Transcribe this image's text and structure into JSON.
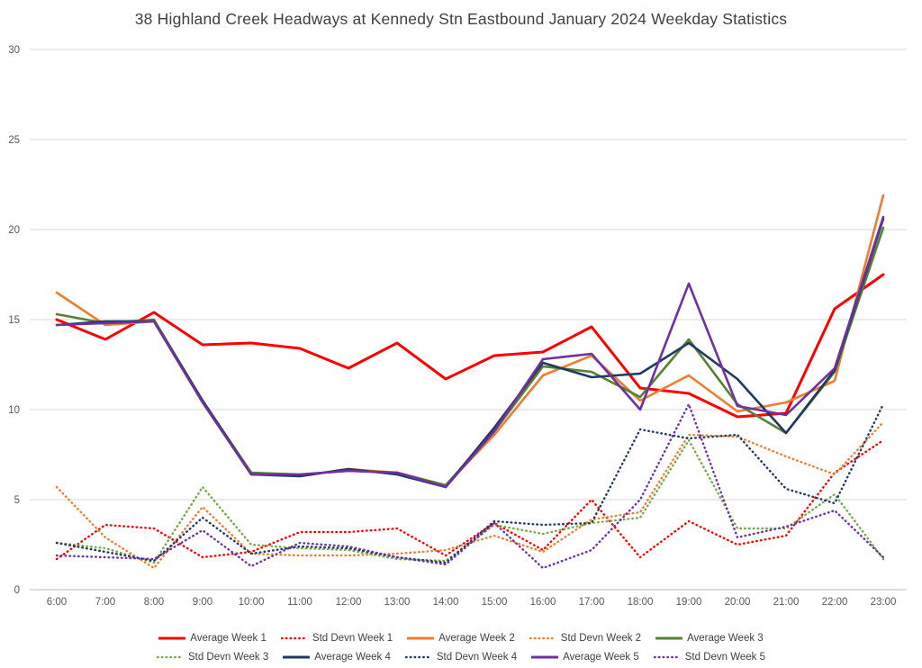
{
  "title": "38 Highland Creek Headways at Kennedy Stn Eastbound January 2024 Weekday Statistics",
  "chart_data": {
    "type": "line",
    "title": "38 Highland Creek Headways at Kennedy Stn Eastbound January 2024 Weekday Statistics",
    "xlabel": "",
    "ylabel": "",
    "ylim": [
      0,
      30
    ],
    "yticks": [
      0,
      5,
      10,
      15,
      20,
      25,
      30
    ],
    "grid": true,
    "legend_position": "bottom",
    "x": [
      "6:00",
      "7:00",
      "8:00",
      "9:00",
      "10:00",
      "11:00",
      "12:00",
      "13:00",
      "14:00",
      "15:00",
      "16:00",
      "17:00",
      "18:00",
      "19:00",
      "20:00",
      "21:00",
      "22:00",
      "23:00"
    ],
    "series": [
      {
        "name": "Average Week 1",
        "color": "#FF0000",
        "style": "solid",
        "values": [
          15.0,
          13.9,
          15.4,
          13.6,
          13.7,
          13.4,
          12.3,
          13.7,
          11.7,
          13.0,
          13.2,
          14.6,
          11.2,
          10.9,
          9.6,
          9.8,
          15.6,
          17.5
        ]
      },
      {
        "name": "Std Devn Week 1",
        "color": "#FF0000",
        "style": "dotted",
        "values": [
          1.7,
          3.6,
          3.4,
          1.8,
          2.1,
          3.2,
          3.2,
          3.4,
          1.9,
          3.7,
          2.2,
          5.0,
          1.8,
          3.8,
          2.5,
          3.0,
          6.5,
          8.3
        ]
      },
      {
        "name": "Average Week 2",
        "color": "#ED7D31",
        "style": "solid",
        "values": [
          16.5,
          14.7,
          14.9,
          10.4,
          6.5,
          6.3,
          6.7,
          6.5,
          5.8,
          8.6,
          11.9,
          13.0,
          10.5,
          11.9,
          9.9,
          10.4,
          11.6,
          21.9
        ]
      },
      {
        "name": "Std Devn Week 2",
        "color": "#ED7D31",
        "style": "dotted",
        "values": [
          5.7,
          2.9,
          1.2,
          4.6,
          2.0,
          1.9,
          1.9,
          2.0,
          2.2,
          3.0,
          2.1,
          3.9,
          4.3,
          8.6,
          8.5,
          7.4,
          6.4,
          9.3
        ]
      },
      {
        "name": "Average Week 3",
        "color": "#548235",
        "style": "solid",
        "values": [
          15.3,
          14.8,
          15.0,
          10.5,
          6.5,
          6.4,
          6.6,
          6.5,
          5.8,
          8.8,
          12.4,
          12.1,
          10.7,
          13.9,
          10.3,
          8.7,
          12.1,
          20.1
        ]
      },
      {
        "name": "Std Devn Week 3",
        "color": "#70AD47",
        "style": "dotted",
        "values": [
          2.6,
          2.3,
          1.5,
          5.7,
          2.5,
          2.3,
          2.2,
          1.7,
          1.6,
          3.6,
          3.1,
          3.7,
          4.0,
          8.3,
          3.4,
          3.4,
          5.3,
          1.7
        ]
      },
      {
        "name": "Average Week 4",
        "color": "#203864",
        "style": "solid",
        "values": [
          14.7,
          14.9,
          14.9,
          10.5,
          6.4,
          6.3,
          6.7,
          6.4,
          5.7,
          9.0,
          12.6,
          11.8,
          12.0,
          13.7,
          11.7,
          8.7,
          12.2,
          20.6
        ]
      },
      {
        "name": "Std Devn Week 4",
        "color": "#203864",
        "style": "dotted",
        "values": [
          2.6,
          2.1,
          1.6,
          4.0,
          2.0,
          2.4,
          2.3,
          1.8,
          1.5,
          3.8,
          3.6,
          3.7,
          8.9,
          8.4,
          8.6,
          5.6,
          4.8,
          10.3
        ]
      },
      {
        "name": "Average Week 5",
        "color": "#7030A0",
        "style": "solid",
        "values": [
          14.7,
          14.8,
          14.9,
          10.4,
          6.4,
          6.4,
          6.6,
          6.5,
          5.7,
          8.8,
          12.8,
          13.1,
          10.0,
          17.0,
          10.2,
          9.7,
          12.3,
          20.7
        ]
      },
      {
        "name": "Std Devn Week 5",
        "color": "#7030A0",
        "style": "dotted",
        "values": [
          1.9,
          1.8,
          1.7,
          3.3,
          1.3,
          2.6,
          2.4,
          1.8,
          1.4,
          3.7,
          1.2,
          2.2,
          5.0,
          10.3,
          2.9,
          3.5,
          4.4,
          1.8
        ]
      }
    ],
    "legend_rows": [
      [
        0,
        1,
        2,
        3,
        4
      ],
      [
        5,
        6,
        7,
        8,
        9
      ]
    ]
  },
  "style_hints": {
    "gridline_color": "#D9D9D9",
    "axis_label_color": "#595959",
    "title_color": "#404040",
    "legend_text_color": "#404040"
  }
}
